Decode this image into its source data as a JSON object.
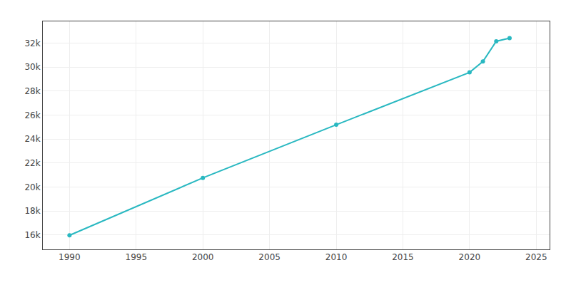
{
  "chart_data": {
    "type": "line",
    "x": [
      1990,
      2000,
      2010,
      2020,
      2021,
      2022,
      2023
    ],
    "values": [
      15974,
      20759,
      25185,
      29549,
      30462,
      32143,
      32406
    ],
    "color": "#29B8C1",
    "marker": "circle",
    "xlim": [
      1988,
      2026
    ],
    "ylim": [
      14800,
      33800
    ],
    "xticks": [
      1990,
      1995,
      2000,
      2005,
      2010,
      2015,
      2020,
      2025
    ],
    "yticks": [
      {
        "value": 16000,
        "label": "16k"
      },
      {
        "value": 18000,
        "label": "18k"
      },
      {
        "value": 20000,
        "label": "20k"
      },
      {
        "value": 22000,
        "label": "22k"
      },
      {
        "value": 24000,
        "label": "24k"
      },
      {
        "value": 26000,
        "label": "26k"
      },
      {
        "value": 28000,
        "label": "28k"
      },
      {
        "value": 30000,
        "label": "30k"
      },
      {
        "value": 32000,
        "label": "32k"
      }
    ],
    "grid": true
  }
}
